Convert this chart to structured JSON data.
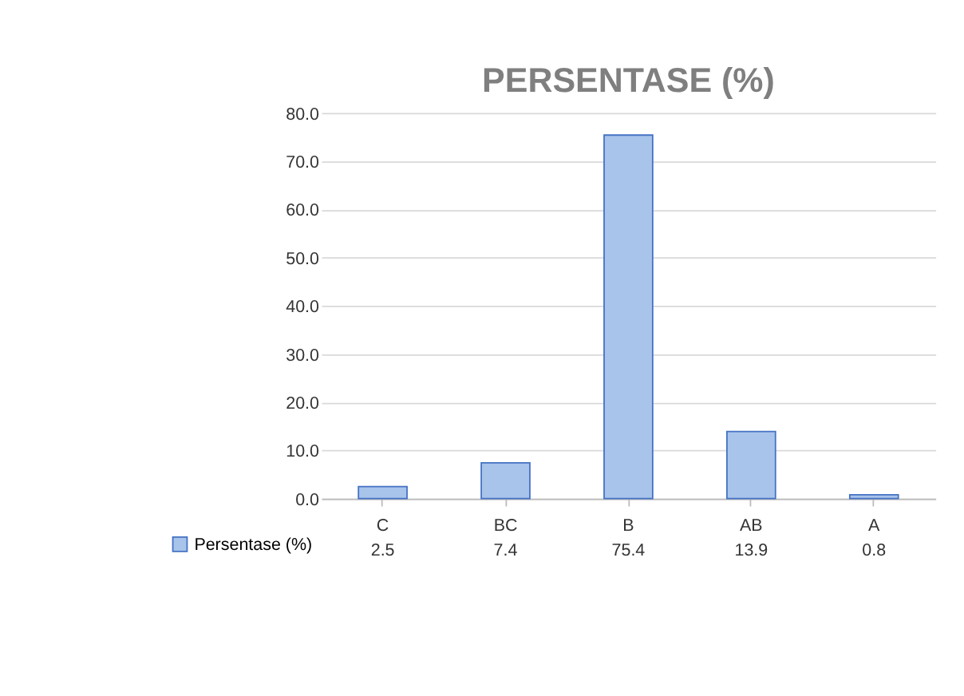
{
  "chart_data": {
    "type": "bar",
    "title": "PERSENTASE (%)",
    "categories": [
      "C",
      "BC",
      "B",
      "AB",
      "A"
    ],
    "series": [
      {
        "name": "Persentase (%)",
        "color": "#a9c4eb",
        "values": [
          2.5,
          7.4,
          75.4,
          13.9,
          0.8
        ]
      }
    ],
    "ylim": [
      0,
      80
    ],
    "yticks": [
      {
        "value": 0,
        "label": "0.0"
      },
      {
        "value": 10,
        "label": "10.0"
      },
      {
        "value": 20,
        "label": "20.0"
      },
      {
        "value": 30,
        "label": "30.0"
      },
      {
        "value": 40,
        "label": "40.0"
      },
      {
        "value": 50,
        "label": "50.0"
      },
      {
        "value": 60,
        "label": "60.0"
      },
      {
        "value": 70,
        "label": "70.0"
      },
      {
        "value": 80,
        "label": "80.0"
      }
    ],
    "grid": "y",
    "legend": "bottom left",
    "data_labels": true
  }
}
